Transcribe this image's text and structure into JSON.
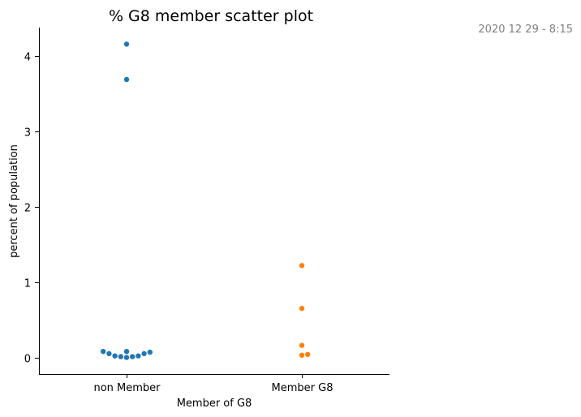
{
  "timestamp": "2020 12 29 - 8:15",
  "chart_data": {
    "type": "scatter",
    "title": "% G8 member scatter plot",
    "xlabel": "Member of G8",
    "ylabel": "percent of population",
    "categories": [
      "non Member",
      "Member G8"
    ],
    "ylim": [
      -0.22,
      4.38
    ],
    "yticks": [
      0,
      1,
      2,
      3,
      4
    ],
    "grid": false,
    "series": [
      {
        "category": "non Member",
        "color": "#1f77b4",
        "values": [
          4.16,
          3.69,
          0.08,
          0.07,
          0.08,
          0.05,
          0.05,
          0.02,
          0.01,
          0.0,
          0.01,
          0.02
        ]
      },
      {
        "category": "Member G8",
        "color": "#ff7f0e",
        "values": [
          1.22,
          0.65,
          0.16,
          0.04,
          0.03
        ]
      }
    ]
  }
}
